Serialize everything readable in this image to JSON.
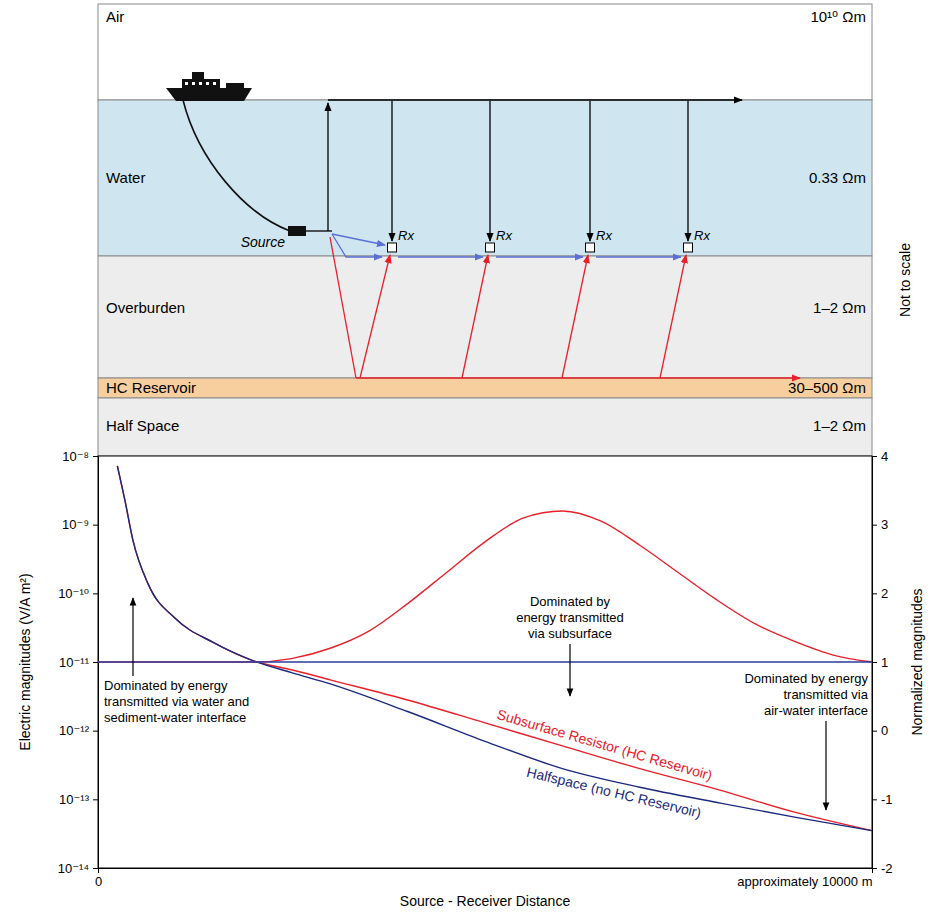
{
  "diagram": {
    "layers": [
      {
        "label": "Air",
        "resistivity": "10¹⁰ Ωm"
      },
      {
        "label": "Water",
        "resistivity": "0.33 Ωm"
      },
      {
        "label": "Overburden",
        "resistivity": "1–2 Ωm"
      },
      {
        "label": "HC Reservoir",
        "resistivity": "30–500 Ωm"
      },
      {
        "label": "Half Space",
        "resistivity": "1–2 Ωm"
      }
    ],
    "source_label": "Source",
    "receivers": [
      "Rx",
      "Rx",
      "Rx",
      "Rx"
    ],
    "scale_note": "Not to scale"
  },
  "chart_data": {
    "type": "line",
    "xlabel": "Source - Receiver Distance",
    "ylabel": "Electric magnitudes (V/A m²)",
    "y2label": "Normalized magnitudes",
    "log": "y",
    "xlim": [
      0,
      10000
    ],
    "xticks": [
      0,
      {
        "value": 10000,
        "label": "approximately 10000 m"
      }
    ],
    "ylim": [
      1e-14,
      1e-08
    ],
    "yticks": [
      {
        "value": 1e-08,
        "label": "10⁻⁸"
      },
      {
        "value": 1e-09,
        "label": "10⁻⁹"
      },
      {
        "value": 1e-10,
        "label": "10⁻¹⁰"
      },
      {
        "value": 1e-11,
        "label": "10⁻¹¹"
      },
      {
        "value": 1e-12,
        "label": "10⁻¹²"
      },
      {
        "value": 1e-13,
        "label": "10⁻¹³"
      },
      {
        "value": 1e-14,
        "label": "10⁻¹⁴"
      }
    ],
    "y2lim": [
      -2,
      4
    ],
    "y2ticks": [
      4,
      3,
      2,
      1,
      0,
      -1,
      -2
    ],
    "series": [
      {
        "name": "Subsurface Resistor (HC Reservoir)",
        "color": "#e8202a",
        "axis": "y",
        "x": [
          250,
          350,
          450,
          650,
          1000,
          1500,
          2000,
          2500,
          3000,
          4000,
          5000,
          6000,
          7000,
          8000,
          9000,
          10000
        ],
        "values": [
          7.2e-09,
          2.2e-09,
          6e-10,
          1.35e-10,
          4.3e-11,
          1.9e-11,
          1.05e-11,
          7.7e-12,
          5.5e-12,
          2.8e-12,
          1.3e-12,
          6e-13,
          2.8e-13,
          1.4e-13,
          6.5e-14,
          3.5e-14
        ]
      },
      {
        "name": "Halfspace (no HC Reservoir)",
        "color": "#1b2a7c",
        "axis": "y",
        "x": [
          250,
          350,
          450,
          650,
          1000,
          1500,
          2000,
          2500,
          3000,
          4000,
          5000,
          6000,
          7000,
          8000,
          9000,
          10000
        ],
        "values": [
          7.2e-09,
          2.2e-09,
          6e-10,
          1.35e-10,
          4.3e-11,
          1.9e-11,
          1.05e-11,
          7e-12,
          4.8e-12,
          1.9e-12,
          7e-13,
          2.8e-13,
          1.5e-13,
          9e-14,
          5.5e-14,
          3.5e-14
        ]
      },
      {
        "color": "#e8202a",
        "axis": "y2",
        "x": [
          0,
          1000,
          2000,
          2500,
          3000,
          3500,
          4000,
          4500,
          5000,
          5500,
          6000,
          6500,
          7000,
          7500,
          8000,
          8500,
          9000,
          9500,
          10000
        ],
        "values": [
          1,
          1,
          1,
          1.05,
          1.2,
          1.45,
          1.85,
          2.3,
          2.75,
          3.1,
          3.2,
          3.05,
          2.7,
          2.3,
          1.9,
          1.55,
          1.3,
          1.1,
          1
        ]
      },
      {
        "color": "#2a3c9e",
        "axis": "y2",
        "x": [
          0,
          10000
        ],
        "values": [
          1,
          1
        ]
      }
    ],
    "annotations": [
      {
        "lines": [
          "Dominated by energy",
          "transmitted via water and",
          "sediment-water interface"
        ]
      },
      {
        "lines": [
          "Dominated by",
          "energy transmitted",
          "via subsurface"
        ]
      },
      {
        "lines": [
          "Dominated by energy",
          "transmitted via",
          "air-water interface"
        ]
      }
    ]
  }
}
